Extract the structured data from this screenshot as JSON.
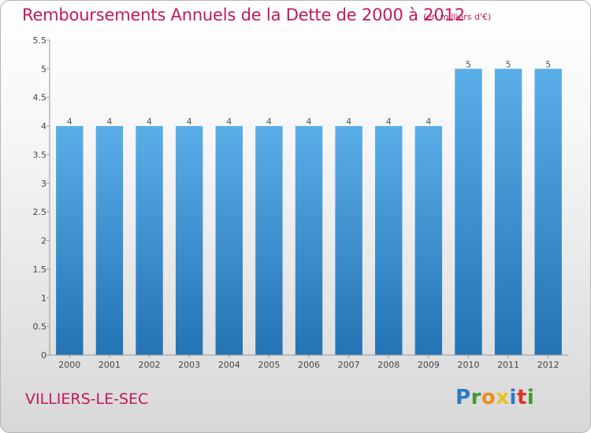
{
  "header": {
    "title": "Remboursements Annuels de la Dette de 2000 à 2012",
    "subtitle": "(en milliers d'€)"
  },
  "footer": {
    "place": "VILLIERS-LE-SEC",
    "logo_letters": [
      "P",
      "r",
      "o",
      "x",
      "i",
      "t",
      "i"
    ]
  },
  "chart_data": {
    "type": "bar",
    "title": "Remboursements Annuels de la Dette de 2000 à 2012",
    "subtitle": "(en milliers d'€)",
    "xlabel": "",
    "ylabel": "",
    "categories": [
      "2000",
      "2001",
      "2002",
      "2003",
      "2004",
      "2005",
      "2006",
      "2007",
      "2008",
      "2009",
      "2010",
      "2011",
      "2012"
    ],
    "values": [
      4,
      4,
      4,
      4,
      4,
      4,
      4,
      4,
      4,
      4,
      5,
      5,
      5
    ],
    "value_labels": [
      "4",
      "4",
      "4",
      "4",
      "4",
      "4",
      "4",
      "4",
      "4",
      "4",
      "5",
      "5",
      "5"
    ],
    "ylim": [
      0,
      5.5
    ],
    "yticks": [
      0,
      0.5,
      1,
      1.5,
      2,
      2.5,
      3,
      3.5,
      4,
      4.5,
      5,
      5.5
    ],
    "ytick_labels": [
      "0",
      "0.5",
      "1",
      "1.5",
      "2",
      "2.5",
      "3",
      "3.5",
      "4",
      "4.5",
      "5",
      "5.5"
    ],
    "grid": false,
    "legend": "none",
    "colors": {
      "bar_light": "#5aaee8",
      "bar_dark": "#2473b4",
      "axis": "#999999",
      "title": "#c2185b"
    }
  }
}
